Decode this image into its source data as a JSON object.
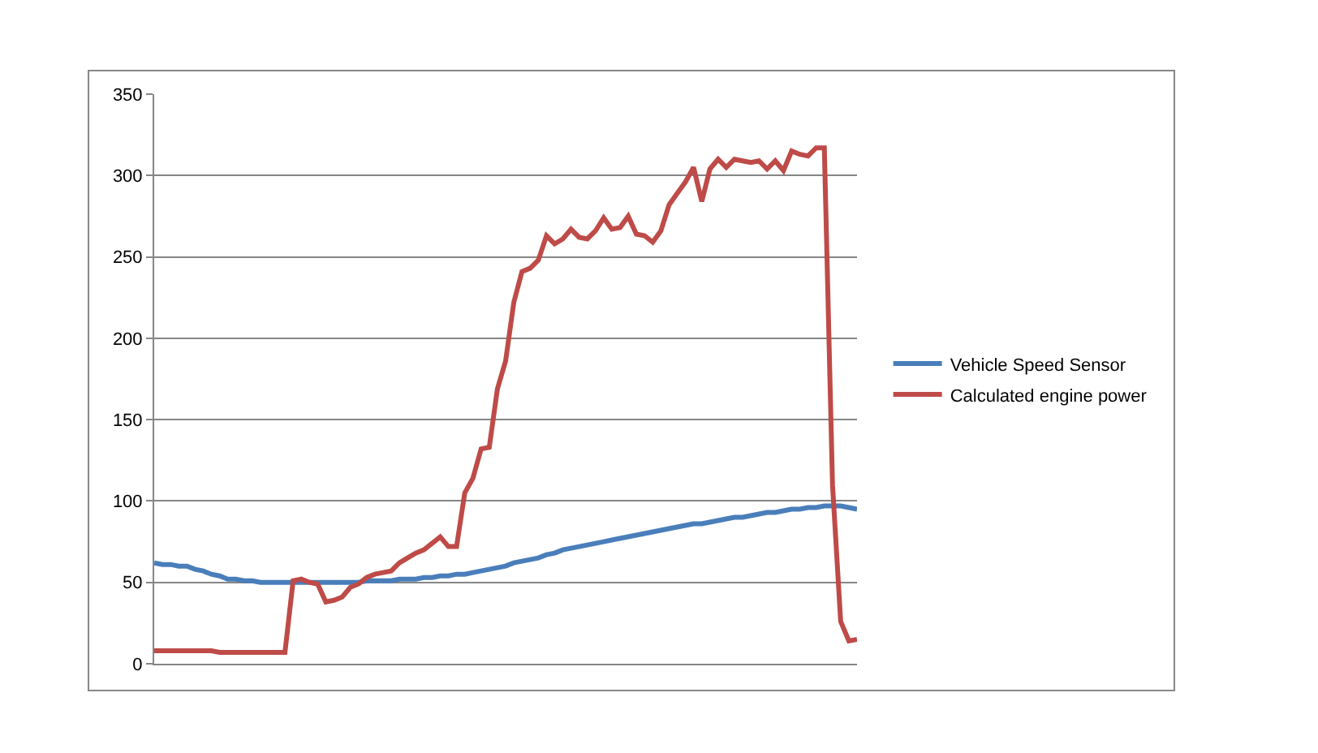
{
  "chart_data": {
    "type": "line",
    "categories": [
      null,
      null,
      null,
      null,
      null,
      null,
      null,
      null,
      null,
      null,
      null,
      null,
      null,
      null,
      null,
      null,
      null,
      null,
      null,
      null,
      null,
      null,
      null,
      null,
      null,
      null,
      null,
      null,
      null,
      null,
      null,
      null,
      null,
      null,
      null,
      null,
      null,
      null,
      null,
      null,
      null,
      null,
      null,
      null,
      null,
      null,
      null,
      null,
      null,
      null,
      null,
      null,
      null,
      null,
      null,
      null,
      null,
      null,
      null,
      null,
      null,
      null,
      null,
      null,
      null,
      null,
      null,
      null,
      null,
      null,
      null,
      null,
      null,
      null,
      null,
      null,
      null,
      null,
      null,
      null,
      null,
      null,
      null,
      null,
      null,
      null,
      null
    ],
    "series": [
      {
        "name": "Vehicle Speed Sensor",
        "color": "#4a7ebb",
        "values": [
          62,
          61,
          61,
          60,
          60,
          58,
          57,
          55,
          54,
          52,
          52,
          51,
          51,
          50,
          50,
          50,
          50,
          50,
          50,
          50,
          50,
          50,
          50,
          50,
          50,
          50,
          51,
          51,
          51,
          51,
          52,
          52,
          52,
          53,
          53,
          54,
          54,
          55,
          55,
          56,
          57,
          58,
          59,
          60,
          62,
          63,
          64,
          65,
          67,
          68,
          70,
          71,
          72,
          73,
          74,
          75,
          76,
          77,
          78,
          79,
          80,
          81,
          82,
          83,
          84,
          85,
          86,
          86,
          87,
          88,
          89,
          90,
          90,
          91,
          92,
          93,
          93,
          94,
          95,
          95,
          96,
          96,
          97,
          97,
          97,
          96,
          95
        ]
      },
      {
        "name": "Calculated engine power",
        "color": "#be4b48",
        "values": [
          8,
          8,
          8,
          8,
          8,
          8,
          8,
          8,
          7,
          7,
          7,
          7,
          7,
          7,
          7,
          7,
          7,
          51,
          52,
          50,
          49,
          38,
          39,
          41,
          47,
          49,
          53,
          55,
          56,
          57,
          62,
          65,
          68,
          70,
          74,
          78,
          72,
          72,
          105,
          114,
          132,
          133,
          169,
          186,
          222,
          241,
          243,
          248,
          263,
          258,
          261,
          267,
          262,
          261,
          266,
          274,
          267,
          268,
          275,
          264,
          263,
          259,
          266,
          282,
          289,
          296,
          305,
          284,
          304,
          310,
          305,
          310,
          309,
          308,
          309,
          304,
          309,
          303,
          315,
          313,
          312,
          317,
          317,
          110,
          26,
          14,
          15
        ]
      }
    ],
    "ylim": [
      0,
      350
    ],
    "yticks": [
      0,
      50,
      100,
      150,
      200,
      250,
      300,
      350
    ],
    "grid": "y",
    "legend": "right",
    "tick_labels": "y",
    "marker": "none",
    "line_style": "solid"
  }
}
